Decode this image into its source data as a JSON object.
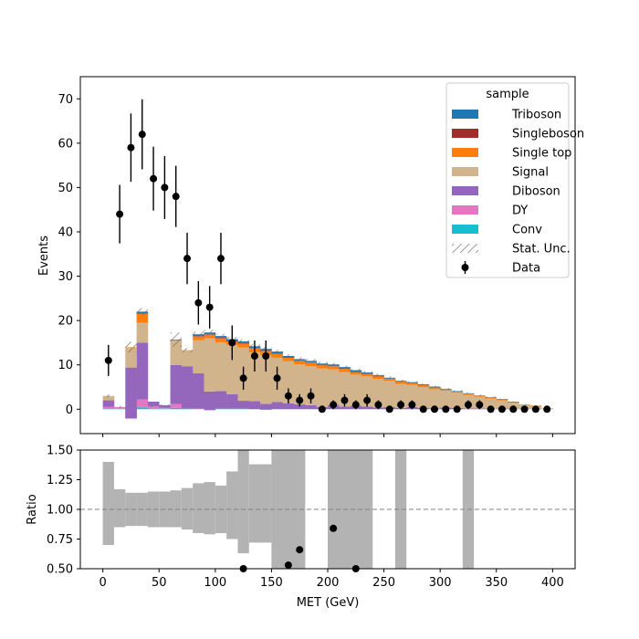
{
  "chart_data": [
    {
      "type": "area",
      "panel": "main",
      "ylabel": "Events",
      "xlim": [
        -20,
        420
      ],
      "ylim": [
        -5.5,
        75
      ],
      "yticks": [
        0,
        10,
        20,
        30,
        40,
        50,
        60,
        70
      ],
      "bin_edges": [
        0,
        10,
        20,
        30,
        40,
        50,
        60,
        70,
        80,
        90,
        100,
        110,
        120,
        130,
        140,
        150,
        160,
        170,
        180,
        190,
        200,
        210,
        220,
        230,
        240,
        250,
        260,
        270,
        280,
        290,
        300,
        310,
        320,
        330,
        340,
        350,
        360,
        370,
        380,
        390,
        400
      ],
      "legend": {
        "title": "sample",
        "placement": "upper right",
        "entries": [
          "Triboson",
          "Singleboson",
          "Single top",
          "Signal",
          "Diboson",
          "DY",
          "Conv",
          "Stat. Unc.",
          "Data"
        ]
      },
      "series": [
        {
          "name": "Conv",
          "color": "#17becf",
          "values": [
            0.2,
            0.1,
            -0.1,
            0.4,
            0.2,
            0.1,
            0.3,
            0.1,
            0.0,
            -0.2,
            0.1,
            0.1,
            0.1,
            0.0,
            -0.1,
            0.0,
            0.0,
            0.0,
            0.0,
            0.0,
            0.0,
            0.0,
            0.0,
            0.0,
            0.0,
            0.0,
            0.0,
            0.0,
            0.0,
            0.0,
            0.0,
            0.0,
            0.0,
            0.0,
            0.0,
            0.0,
            0.0,
            0.0,
            0.0,
            0.0
          ]
        },
        {
          "name": "DY",
          "color": "#e377c2",
          "values": [
            0.3,
            0.4,
            -2.0,
            1.8,
            1.5,
            0.2,
            0.9,
            0.0,
            0.1,
            0.0,
            0.0,
            0.0,
            0.0,
            0.0,
            0.0,
            0.0,
            0.0,
            0.0,
            0.0,
            0.0,
            0.0,
            0.0,
            0.0,
            0.0,
            0.0,
            0.0,
            0.0,
            0.0,
            0.0,
            0.0,
            0.0,
            0.0,
            0.0,
            0.0,
            0.0,
            0.0,
            0.0,
            0.0,
            0.0,
            0.0
          ]
        },
        {
          "name": "Diboson",
          "color": "#9467bd",
          "values": [
            1.5,
            0.0,
            11.5,
            12.8,
            -1.0,
            0.6,
            8.8,
            9.6,
            8.0,
            4.2,
            4.0,
            3.3,
            1.8,
            1.8,
            1.3,
            1.6,
            1.3,
            1.1,
            0.9,
            0.5,
            1.0,
            0.6,
            0.8,
            0.6,
            0.4,
            0.5,
            0.3,
            0.5,
            0.3,
            0.2,
            0.4,
            0.3,
            0.2,
            0.2,
            0.1,
            0.2,
            0.1,
            0.0,
            0.1,
            0.0
          ]
        },
        {
          "name": "Signal",
          "color": "#d2b48c",
          "values": [
            1.0,
            0.0,
            4.5,
            4.5,
            0.0,
            0.0,
            5.5,
            3.5,
            7.5,
            12.0,
            11.0,
            11.0,
            12.0,
            11.0,
            11.0,
            10.0,
            9.5,
            9.0,
            8.8,
            8.7,
            8.0,
            7.8,
            7.0,
            6.8,
            6.4,
            5.9,
            5.4,
            5.0,
            4.7,
            4.3,
            3.8,
            3.4,
            3.0,
            2.6,
            2.3,
            1.8,
            1.4,
            1.0,
            0.6,
            0.2
          ]
        },
        {
          "name": "Single top",
          "color": "#ff7f0e",
          "values": [
            0.0,
            0.0,
            0.1,
            2.0,
            0.0,
            0.0,
            0.1,
            0.1,
            0.8,
            0.8,
            0.9,
            0.9,
            0.9,
            0.9,
            0.9,
            0.9,
            0.8,
            0.8,
            0.8,
            0.7,
            0.7,
            0.7,
            0.6,
            0.6,
            0.6,
            0.5,
            0.5,
            0.4,
            0.4,
            0.4,
            0.3,
            0.3,
            0.3,
            0.2,
            0.2,
            0.2,
            0.1,
            0.1,
            0.1,
            0.0
          ]
        },
        {
          "name": "Singleboson",
          "color": "#a52a2a",
          "values": [
            0.0,
            0.0,
            0.0,
            0.1,
            0.0,
            0.0,
            0.0,
            0.0,
            0.1,
            0.1,
            0.1,
            0.1,
            0.1,
            0.1,
            0.1,
            0.1,
            0.1,
            0.1,
            0.1,
            0.1,
            0.1,
            0.1,
            0.1,
            0.1,
            0.1,
            0.0,
            0.0,
            0.0,
            0.0,
            0.0,
            0.0,
            0.0,
            0.0,
            0.0,
            0.0,
            0.0,
            0.0,
            0.0,
            0.0,
            0.0
          ]
        },
        {
          "name": "Triboson",
          "color": "#1f77b4",
          "values": [
            0.0,
            0.0,
            0.0,
            0.4,
            0.0,
            0.0,
            0.1,
            0.0,
            0.4,
            0.4,
            0.4,
            0.4,
            0.4,
            0.4,
            0.4,
            0.4,
            0.3,
            0.3,
            0.3,
            0.3,
            0.3,
            0.3,
            0.3,
            0.2,
            0.2,
            0.2,
            0.2,
            0.2,
            0.2,
            0.2,
            0.1,
            0.1,
            0.1,
            0.1,
            0.1,
            0.1,
            0.1,
            0.0,
            0.0,
            0.0
          ]
        }
      ],
      "stat_unc": [
        0.3,
        0.2,
        1.2,
        0.8,
        0.2,
        0.2,
        1.6,
        0.5,
        0.6,
        0.6,
        0.5,
        0.5,
        0.5,
        0.5,
        0.5,
        0.4,
        0.4,
        0.4,
        0.4,
        0.4,
        0.3,
        0.3,
        0.3,
        0.3,
        0.3,
        0.3,
        0.3,
        0.2,
        0.2,
        0.2,
        0.2,
        0.2,
        0.2,
        0.2,
        0.2,
        0.1,
        0.1,
        0.1,
        0.1,
        0.1
      ],
      "data": {
        "name": "Data",
        "x": [
          5,
          15,
          25,
          35,
          45,
          55,
          65,
          75,
          85,
          95,
          105,
          115,
          125,
          135,
          145,
          155,
          165,
          175,
          185,
          195,
          205,
          215,
          225,
          235,
          245,
          255,
          265,
          275,
          285,
          295,
          305,
          315,
          325,
          335,
          345,
          355,
          365,
          375,
          385,
          395
        ],
        "y": [
          11,
          44,
          59,
          62,
          52,
          50,
          48,
          34,
          24,
          23,
          34,
          15,
          7,
          12,
          12,
          7,
          3,
          2,
          3,
          0,
          1,
          2,
          1,
          2,
          1,
          0,
          1,
          1,
          0,
          0,
          0,
          0,
          1,
          1,
          0,
          0,
          0,
          0,
          0,
          0
        ],
        "yerr": [
          3.5,
          6.6,
          7.7,
          7.9,
          7.2,
          7.1,
          6.9,
          5.8,
          4.9,
          4.8,
          5.8,
          3.9,
          2.6,
          3.5,
          3.5,
          2.6,
          1.7,
          1.4,
          1.7,
          0,
          1.0,
          1.4,
          1.0,
          1.4,
          1.0,
          0,
          1.0,
          1.0,
          0,
          0,
          0,
          0,
          1.0,
          1.0,
          0,
          0,
          0,
          0,
          0,
          0
        ]
      }
    },
    {
      "type": "scatter",
      "panel": "ratio",
      "xlabel": "MET (GeV)",
      "ylabel": "Ratio",
      "xlim": [
        -20,
        420
      ],
      "ylim": [
        0.5,
        1.5
      ],
      "xticks": [
        0,
        50,
        100,
        150,
        200,
        250,
        300,
        350,
        400
      ],
      "yticks": [
        0.5,
        0.75,
        1.0,
        1.25,
        1.5
      ],
      "ytick_labels": [
        "0.50",
        "0.75",
        "1.00",
        "1.25",
        "1.50"
      ],
      "reference_line": 1.0,
      "unc_band": [
        {
          "x0": 0,
          "x1": 10,
          "lo": 0.7,
          "hi": 1.4
        },
        {
          "x0": 10,
          "x1": 20,
          "lo": 0.85,
          "hi": 1.17
        },
        {
          "x0": 20,
          "x1": 30,
          "lo": 0.86,
          "hi": 1.14
        },
        {
          "x0": 30,
          "x1": 40,
          "lo": 0.86,
          "hi": 1.14
        },
        {
          "x0": 40,
          "x1": 50,
          "lo": 0.85,
          "hi": 1.15
        },
        {
          "x0": 50,
          "x1": 60,
          "lo": 0.85,
          "hi": 1.15
        },
        {
          "x0": 60,
          "x1": 70,
          "lo": 0.85,
          "hi": 1.16
        },
        {
          "x0": 70,
          "x1": 80,
          "lo": 0.83,
          "hi": 1.18
        },
        {
          "x0": 80,
          "x1": 90,
          "lo": 0.8,
          "hi": 1.22
        },
        {
          "x0": 90,
          "x1": 100,
          "lo": 0.79,
          "hi": 1.23
        },
        {
          "x0": 100,
          "x1": 110,
          "lo": 0.8,
          "hi": 1.2
        },
        {
          "x0": 110,
          "x1": 120,
          "lo": 0.75,
          "hi": 1.32
        },
        {
          "x0": 120,
          "x1": 130,
          "lo": 0.63,
          "hi": 1.5
        },
        {
          "x0": 130,
          "x1": 150,
          "lo": 0.72,
          "hi": 1.38
        },
        {
          "x0": 150,
          "x1": 180,
          "lo": 0.5,
          "hi": 1.5
        },
        {
          "x0": 200,
          "x1": 240,
          "lo": 0.5,
          "hi": 1.5
        },
        {
          "x0": 260,
          "x1": 270,
          "lo": 0.5,
          "hi": 1.5
        },
        {
          "x0": 320,
          "x1": 330,
          "lo": 0.5,
          "hi": 1.5
        }
      ],
      "points": {
        "x": [
          125,
          165,
          175,
          205,
          225
        ],
        "y": [
          0.5,
          0.53,
          0.66,
          0.84,
          0.5
        ]
      }
    }
  ]
}
